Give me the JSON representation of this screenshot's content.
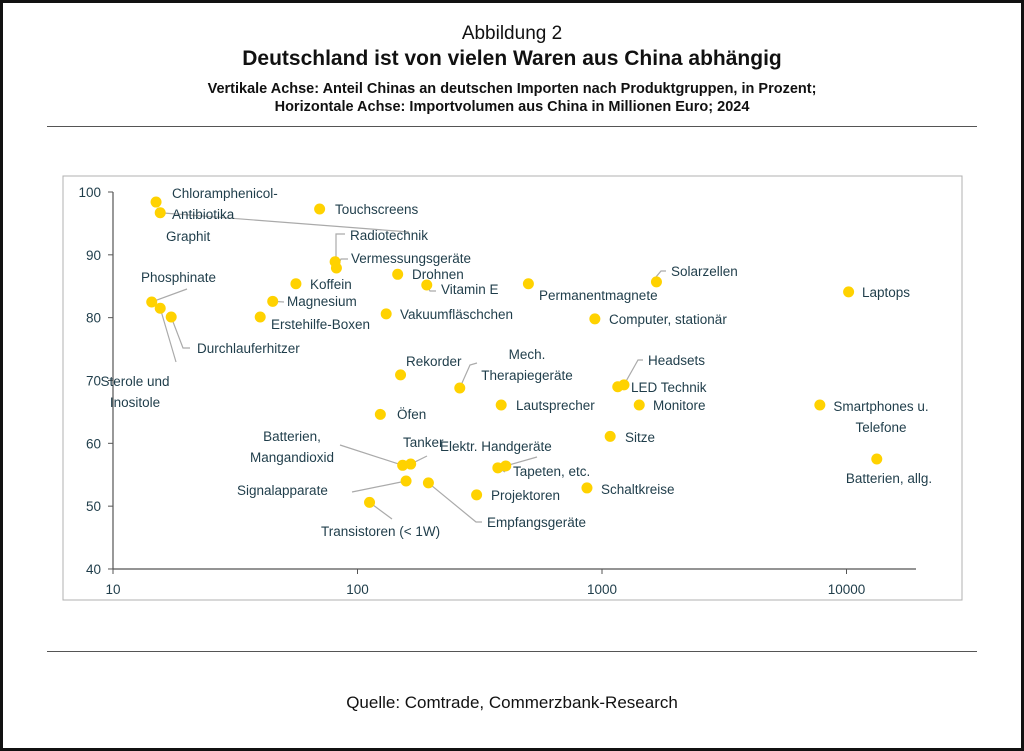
{
  "header": {
    "figure_label": "Abbildung 2",
    "title": "Deutschland ist von vielen Waren aus China abhängig",
    "subtitle_line1": "Vertikale Achse: Anteil Chinas an deutschen Importen nach Produktgruppen, in Prozent;",
    "subtitle_line2": "Horizontale Achse: Importvolumen aus China in Millionen Euro; 2024"
  },
  "source": "Quelle: Comtrade, Commerzbank-Research",
  "colors": {
    "dot": "#ffd200",
    "text": "#1f3d4a",
    "axis": "#555555",
    "leader": "#aaaaaa"
  },
  "chart_data": {
    "type": "scatter",
    "title": "Deutschland ist von vielen Waren aus China abhängig",
    "xlabel": "Importvolumen aus China in Millionen Euro",
    "ylabel": "Anteil Chinas an deutschen Importen nach Produktgruppen, in Prozent",
    "xscale": "log",
    "xlim": [
      10,
      20000
    ],
    "ylim": [
      40,
      100
    ],
    "xticks": [
      "10",
      "100",
      "1000",
      "10000"
    ],
    "yticks": [
      "40",
      "50",
      "60",
      "70",
      "80",
      "90",
      "100"
    ],
    "grid": false,
    "points": [
      {
        "label": "Chloramphenicol-Antibiotika",
        "lines": [
          "Chloramphenicol-",
          "Antibiotika"
        ],
        "x": 15,
        "y": 98.4
      },
      {
        "label": "Graphit",
        "lines": [
          "Graphit"
        ],
        "x": 15.6,
        "y": 96.7
      },
      {
        "label": "Touchscreens",
        "lines": [
          "Touchscreens"
        ],
        "x": 70,
        "y": 97.3
      },
      {
        "label": "Radiotechnik",
        "lines": [
          "Radiotechnik"
        ],
        "x": 81,
        "y": 88.9
      },
      {
        "label": "Vermessungsgeräte",
        "lines": [
          "Vermessungsgeräte"
        ],
        "x": 82,
        "y": 87.9
      },
      {
        "label": "Drohnen",
        "lines": [
          "Drohnen"
        ],
        "x": 146,
        "y": 86.9
      },
      {
        "label": "Vitamin E",
        "lines": [
          "Vitamin E"
        ],
        "x": 192,
        "y": 85.2
      },
      {
        "label": "Koffein",
        "lines": [
          "Koffein"
        ],
        "x": 56,
        "y": 85.4
      },
      {
        "label": "Magnesium",
        "lines": [
          "Magnesium"
        ],
        "x": 45,
        "y": 82.6
      },
      {
        "label": "Erstehilfe-Boxen",
        "lines": [
          "Erstehilfe-Boxen"
        ],
        "x": 40,
        "y": 80.1
      },
      {
        "label": "Phosphinate",
        "lines": [
          "Phosphinate"
        ],
        "x": 14.4,
        "y": 82.5
      },
      {
        "label": "Sterole und Inositole",
        "lines": [
          "Sterole und",
          "Inositole"
        ],
        "x": 15.6,
        "y": 81.5
      },
      {
        "label": "Durchlauferhitzer",
        "lines": [
          "Durchlauferhitzer"
        ],
        "x": 17.3,
        "y": 80.1
      },
      {
        "label": "Vakuumfläschchen",
        "lines": [
          "Vakuumfläschchen"
        ],
        "x": 131,
        "y": 80.6
      },
      {
        "label": "Permanentmagnete",
        "lines": [
          "Permanentmagnete"
        ],
        "x": 500,
        "y": 85.4
      },
      {
        "label": "Solarzellen",
        "lines": [
          "Solarzellen"
        ],
        "x": 1670,
        "y": 85.7
      },
      {
        "label": "Computer, stationär",
        "lines": [
          "Computer, stationär"
        ],
        "x": 935,
        "y": 79.8
      },
      {
        "label": "Laptops",
        "lines": [
          "Laptops"
        ],
        "x": 10200,
        "y": 84.1
      },
      {
        "label": "Rekorder",
        "lines": [
          "Rekorder"
        ],
        "x": 150,
        "y": 70.9
      },
      {
        "label": "Mech. Therapiegeräte",
        "lines": [
          "Mech.",
          "Therapiegeräte"
        ],
        "x": 262,
        "y": 68.8
      },
      {
        "label": "Headsets",
        "lines": [
          "Headsets"
        ],
        "x": 1230,
        "y": 69.3
      },
      {
        "label": "LED Technik",
        "lines": [
          "LED Technik"
        ],
        "x": 1160,
        "y": 69.0
      },
      {
        "label": "Lautsprecher",
        "lines": [
          "Lautsprecher"
        ],
        "x": 387,
        "y": 66.1
      },
      {
        "label": "Monitore",
        "lines": [
          "Monitore"
        ],
        "x": 1420,
        "y": 66.1
      },
      {
        "label": "Smartphones u. Telefone",
        "lines": [
          "Smartphones u.",
          "Telefone"
        ],
        "x": 7780,
        "y": 66.1
      },
      {
        "label": "Öfen",
        "lines": [
          "Öfen"
        ],
        "x": 124,
        "y": 64.6
      },
      {
        "label": "Sitze",
        "lines": [
          "Sitze"
        ],
        "x": 1080,
        "y": 61.1
      },
      {
        "label": "Batterien, allg.",
        "lines": [
          "Batterien, allg."
        ],
        "x": 13300,
        "y": 57.5
      },
      {
        "label": "Batterien, Mangandioxid",
        "lines": [
          "Batterien,",
          "Mangandioxid"
        ],
        "x": 153,
        "y": 56.5
      },
      {
        "label": "Tanker",
        "lines": [
          "Tanker"
        ],
        "x": 165,
        "y": 56.7
      },
      {
        "label": "Elektr. Handgeräte",
        "lines": [
          "Elektr. Handgeräte"
        ],
        "x": 404,
        "y": 56.4
      },
      {
        "label": "Tapeten, etc.",
        "lines": [
          "Tapeten, etc."
        ],
        "x": 375,
        "y": 56.1
      },
      {
        "label": "Signalapparate",
        "lines": [
          "Signalapparate"
        ],
        "x": 158,
        "y": 54.0
      },
      {
        "label": "Empfangsgeräte",
        "lines": [
          "Empfangsgeräte"
        ],
        "x": 195,
        "y": 53.7
      },
      {
        "label": "Projektoren",
        "lines": [
          "Projektoren"
        ],
        "x": 307,
        "y": 51.8
      },
      {
        "label": "Schaltkreise",
        "lines": [
          "Schaltkreise"
        ],
        "x": 868,
        "y": 52.9
      },
      {
        "label": "Transistoren (< 1W)",
        "lines": [
          "Transistoren (< 1W)"
        ],
        "x": 112,
        "y": 50.6
      }
    ]
  }
}
